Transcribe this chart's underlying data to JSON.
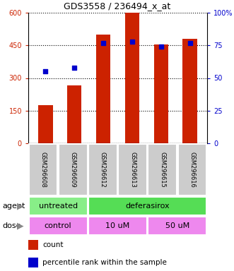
{
  "title": "GDS3558 / 236494_x_at",
  "samples": [
    "GSM296608",
    "GSM296609",
    "GSM296612",
    "GSM296613",
    "GSM296615",
    "GSM296616"
  ],
  "bar_heights": [
    175,
    265,
    500,
    600,
    455,
    480
  ],
  "percentile_values": [
    55,
    58,
    77,
    78,
    74,
    77
  ],
  "bar_color": "#cc2200",
  "dot_color": "#0000cc",
  "ylim_left": [
    0,
    600
  ],
  "ylim_right": [
    0,
    100
  ],
  "yticks_left": [
    0,
    150,
    300,
    450,
    600
  ],
  "ytick_labels_left": [
    "0",
    "150",
    "300",
    "450",
    "600"
  ],
  "yticks_right": [
    0,
    25,
    50,
    75,
    100
  ],
  "ytick_labels_right": [
    "0",
    "25",
    "50",
    "75",
    "100%"
  ],
  "agent_labels": [
    {
      "text": "untreated",
      "start": 0,
      "end": 2,
      "color": "#88ee88"
    },
    {
      "text": "deferasirox",
      "start": 2,
      "end": 6,
      "color": "#55dd55"
    }
  ],
  "dose_labels": [
    {
      "text": "control",
      "start": 0,
      "end": 2,
      "color": "#ee88ee"
    },
    {
      "text": "10 uM",
      "start": 2,
      "end": 4,
      "color": "#ee88ee"
    },
    {
      "text": "50 uM",
      "start": 4,
      "end": 6,
      "color": "#ee88ee"
    }
  ],
  "legend_count_color": "#cc2200",
  "legend_dot_color": "#0000cc",
  "legend_count_label": "count",
  "legend_percentile_label": "percentile rank within the sample",
  "agent_label": "agent",
  "dose_label": "dose",
  "axis_label_color_left": "#cc2200",
  "axis_label_color_right": "#0000cc",
  "bar_width": 0.5,
  "sample_bg_color": "#cccccc",
  "fig_width": 3.31,
  "fig_height": 3.84,
  "dpi": 100
}
